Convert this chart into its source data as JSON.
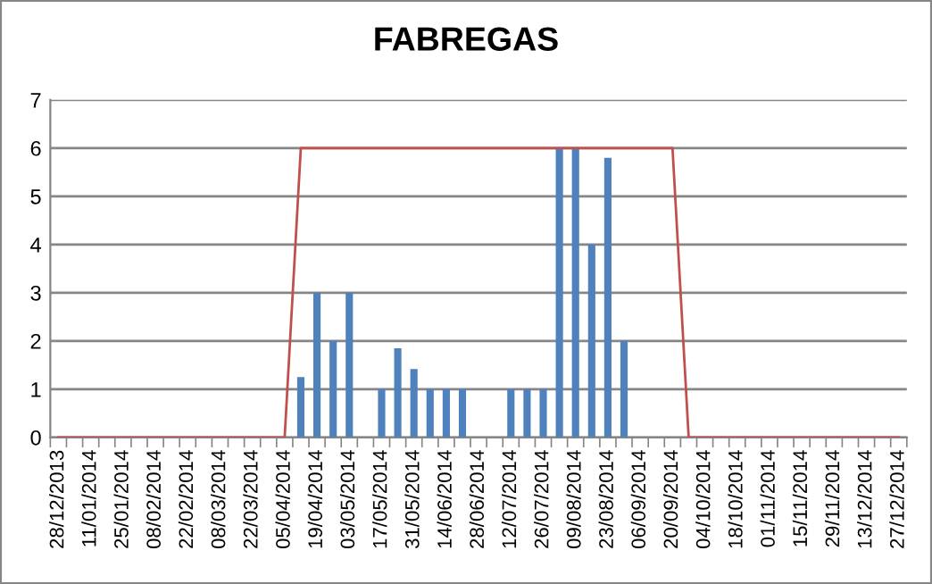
{
  "chart_data": {
    "type": "bar",
    "title": "FABREGAS",
    "categories": [
      "28/12/2013",
      null,
      "11/01/2014",
      null,
      "25/01/2014",
      null,
      "08/02/2014",
      null,
      "22/02/2014",
      null,
      "08/03/2014",
      null,
      "22/03/2014",
      null,
      "05/04/2014",
      null,
      "19/04/2014",
      null,
      "03/05/2014",
      null,
      "17/05/2014",
      null,
      "31/05/2014",
      null,
      "14/06/2014",
      null,
      "28/06/2014",
      null,
      "12/07/2014",
      null,
      "26/07/2014",
      null,
      "09/08/2014",
      null,
      "23/08/2014",
      null,
      "06/09/2014",
      null,
      "20/09/2014",
      null,
      "04/10/2014",
      null,
      "18/10/2014",
      null,
      "01/11/2014",
      null,
      "15/11/2014",
      null,
      "29/11/2014",
      null,
      "13/12/2014",
      null,
      "27/12/2014"
    ],
    "series": [
      {
        "color": "#4f81bd",
        "values": [
          null,
          null,
          null,
          null,
          null,
          null,
          null,
          null,
          null,
          null,
          null,
          null,
          null,
          null,
          null,
          1.25,
          3,
          2,
          3,
          null,
          1,
          1.85,
          1.42,
          1,
          1,
          1,
          null,
          null,
          1,
          1,
          1,
          6,
          6,
          4,
          5.8,
          2,
          null,
          null,
          null,
          null,
          null,
          null,
          null,
          null,
          null,
          null,
          null,
          null,
          null,
          null,
          null,
          null,
          null
        ]
      },
      {
        "type": "line",
        "color": "#c0504d",
        "values": [
          0,
          0,
          0,
          0,
          0,
          0,
          0,
          0,
          0,
          0,
          0,
          0,
          0,
          0,
          0,
          6,
          6,
          6,
          6,
          6,
          6,
          6,
          6,
          6,
          6,
          6,
          6,
          6,
          6,
          6,
          6,
          6,
          6,
          6,
          6,
          6,
          6,
          6,
          6,
          0,
          0,
          0,
          0,
          0,
          0,
          0,
          0,
          0,
          0,
          0,
          0,
          0,
          0
        ]
      }
    ],
    "ylim": [
      0,
      7
    ],
    "yticks": [
      0,
      1,
      2,
      3,
      4,
      5,
      6,
      7
    ],
    "grid": "y",
    "legend": false
  }
}
